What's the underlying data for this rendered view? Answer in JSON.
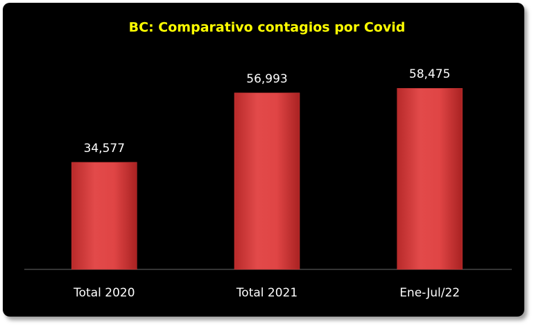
{
  "chart_data": {
    "type": "bar",
    "title": "BC: Comparativo contagios por Covid",
    "categories": [
      "Total 2020",
      "Total 2021",
      "Ene-Jul/22"
    ],
    "values": [
      34577,
      56993,
      58475
    ],
    "value_labels": [
      "34,577",
      "56,993",
      "58,475"
    ],
    "color": "#d93a3a"
  }
}
